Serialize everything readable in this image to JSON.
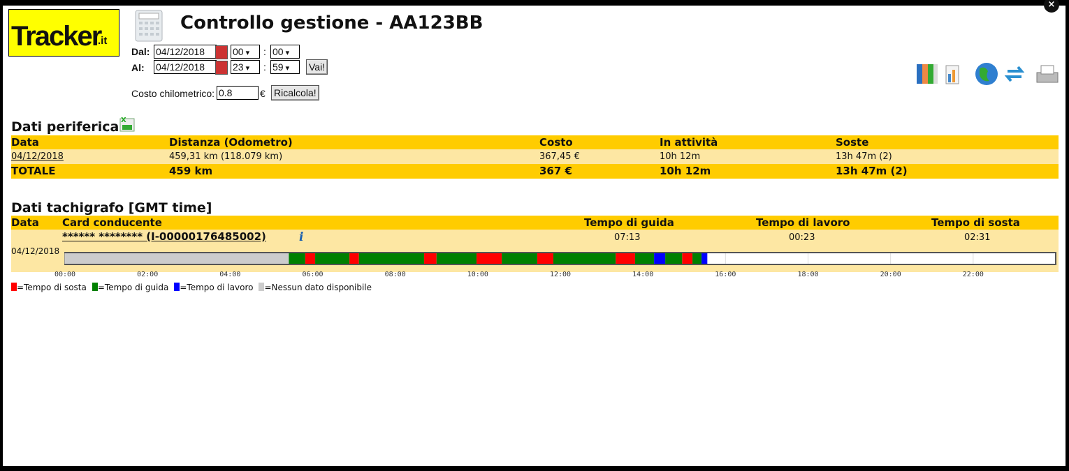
{
  "header": {
    "logo": "Tracker",
    "logo_suffix": ".it",
    "title": "Controllo gestione - AA123BB"
  },
  "filters": {
    "from_label": "Dal:",
    "from_date": "04/12/2018",
    "from_hour": "00",
    "from_minute": "00",
    "separator": ":",
    "to_label": "Al:",
    "to_date": "04/12/2018",
    "to_hour": "23",
    "to_minute": "59",
    "go_button": "Vai!",
    "cost_label": "Costo chilometrico:",
    "cost_value": "0.8",
    "currency": "€",
    "recalc_button": "Ricalcola!"
  },
  "device": {
    "title": "Dati periferica",
    "columns": [
      "Data",
      "Distanza (Odometro)",
      "Costo",
      "In attività",
      "Soste"
    ],
    "rows": [
      [
        "04/12/2018",
        "459,31 km (118.079 km)",
        "367,45 €",
        "10h 12m",
        "13h 47m (2)"
      ]
    ],
    "total": [
      "TOTALE",
      "459 km",
      "367 €",
      "10h 12m",
      "13h 47m (2)"
    ]
  },
  "tacho": {
    "title": "Dati tachigrafo [GMT time]",
    "columns": [
      "Data",
      "Card conducente",
      "Tempo di guida",
      "Tempo di lavoro",
      "Tempo di sosta"
    ],
    "driver": "****** ******** (I-00000176485002)",
    "guida": "07:13",
    "lavoro": "00:23",
    "sosta": "02:31",
    "date": "04/12/2018",
    "timeline": {
      "xlim": [
        0,
        24
      ],
      "xticks": [
        {
          "value": 0,
          "label": "00:00"
        },
        {
          "value": 2,
          "label": "02:00"
        },
        {
          "value": 4,
          "label": "04:00"
        },
        {
          "value": 6,
          "label": "06:00"
        },
        {
          "value": 8,
          "label": "08:00"
        },
        {
          "value": 10,
          "label": "10:00"
        },
        {
          "value": 12,
          "label": "12:00"
        },
        {
          "value": 14,
          "label": "14:00"
        },
        {
          "value": 16,
          "label": "16:00"
        },
        {
          "value": 18,
          "label": "18:00"
        },
        {
          "value": 20,
          "label": "20:00"
        },
        {
          "value": 22,
          "label": "22:00"
        }
      ],
      "legend": [
        {
          "label": "=Tempo di sosta",
          "color": "#ff0000",
          "intervals": [
            [
              5.82,
              6.06
            ],
            [
              6.89,
              7.12
            ],
            [
              8.7,
              9.0
            ],
            [
              9.97,
              10.58
            ],
            [
              11.44,
              11.83
            ],
            [
              13.34,
              13.81
            ],
            [
              14.95,
              15.2
            ]
          ]
        },
        {
          "label": "=Tempo di guida",
          "color": "#008000",
          "intervals": [
            [
              5.42,
              5.82
            ],
            [
              6.06,
              6.89
            ],
            [
              7.12,
              8.7
            ],
            [
              9.0,
              9.97
            ],
            [
              10.58,
              11.44
            ],
            [
              11.83,
              13.34
            ],
            [
              13.81,
              14.27
            ],
            [
              14.54,
              14.95
            ],
            [
              15.2,
              15.42
            ]
          ]
        },
        {
          "label": "=Tempo di lavoro",
          "color": "#0000ff",
          "intervals": [
            [
              14.27,
              14.54
            ],
            [
              15.42,
              15.56
            ]
          ]
        },
        {
          "label": "=Nessun dato disponibile",
          "color": "#cccccc",
          "intervals": [
            [
              0,
              5.42
            ]
          ]
        }
      ]
    }
  }
}
